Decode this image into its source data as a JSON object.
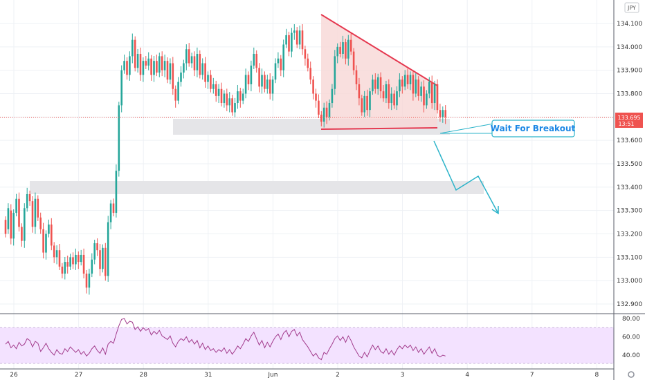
{
  "currency_badge": "JPY",
  "price_tag": {
    "price": "133.695",
    "countdown": "13:51"
  },
  "callout": {
    "label": "Wait For Breakout"
  },
  "colors": {
    "up": "#26a69a",
    "down": "#ef5350",
    "pattern_fill": "#f8d7d6",
    "pattern_line": "#e53950",
    "zone": "#e5e5e8",
    "arrow": "#2bb3c9",
    "callout_border": "#2bb3c9",
    "rsi_line": "#a23b8c",
    "rsi_band": "#f3e2ff",
    "price_tag_bg": "#ef5350"
  },
  "chart_data": [
    {
      "type": "candlestick",
      "title": "",
      "y_ticks": [
        "134.100",
        "134.000",
        "133.900",
        "133.800",
        "133.700",
        "133.600",
        "133.500",
        "133.400",
        "133.300",
        "133.200",
        "133.100",
        "133.000",
        "132.900"
      ],
      "ylim": [
        132.87,
        134.13
      ],
      "x_ticks": [
        {
          "label": "26",
          "x": 0
        },
        {
          "label": "27",
          "x": 24
        },
        {
          "label": "28",
          "x": 48
        },
        {
          "label": "31",
          "x": 72
        },
        {
          "label": "Jun",
          "x": 96
        },
        {
          "label": "2",
          "x": 120
        },
        {
          "label": "3",
          "x": 144
        },
        {
          "label": "4",
          "x": 168
        },
        {
          "label": "7",
          "x": 192
        },
        {
          "label": "8",
          "x": 216
        }
      ],
      "xlim": [
        -4.5,
        241.5
      ],
      "last_price": 133.695,
      "candles": [
        [
          0,
          133.26,
          133.2
        ],
        [
          1,
          133.22,
          133.31
        ],
        [
          2,
          133.3,
          133.18
        ],
        [
          3,
          133.18,
          133.29
        ],
        [
          4,
          133.29,
          133.35
        ],
        [
          5,
          133.35,
          133.23
        ],
        [
          6,
          133.23,
          133.17
        ],
        [
          7,
          133.17,
          133.31
        ],
        [
          8,
          133.31,
          133.37
        ],
        [
          9,
          133.37,
          133.34
        ],
        [
          10,
          133.34,
          133.23
        ],
        [
          11,
          133.23,
          133.35
        ],
        [
          12,
          133.35,
          133.27
        ],
        [
          13,
          133.27,
          133.22
        ],
        [
          14,
          133.22,
          133.12
        ],
        [
          15,
          133.12,
          133.2
        ],
        [
          16,
          133.2,
          133.24
        ],
        [
          17,
          133.24,
          133.15
        ],
        [
          18,
          133.15,
          133.1
        ],
        [
          19,
          133.1,
          133.13
        ],
        [
          20,
          133.13,
          133.06
        ],
        [
          21,
          133.06,
          133.03
        ],
        [
          22,
          133.03,
          133.08
        ],
        [
          23,
          133.08,
          133.06
        ],
        [
          24,
          133.06,
          133.1
        ],
        [
          25,
          133.1,
          133.07
        ],
        [
          26,
          133.07,
          133.11
        ],
        [
          27,
          133.11,
          133.08
        ],
        [
          28,
          133.08,
          133.11
        ],
        [
          29,
          133.11,
          133.03
        ],
        [
          30,
          133.03,
          132.97
        ],
        [
          31,
          132.97,
          133.03
        ],
        [
          32,
          133.03,
          133.09
        ],
        [
          33,
          133.09,
          133.16
        ],
        [
          34,
          133.16,
          133.13
        ],
        [
          35,
          133.13,
          133.05
        ],
        [
          36,
          133.05,
          133.14
        ],
        [
          37,
          133.14,
          133.02
        ],
        [
          38,
          133.02,
          133.25
        ],
        [
          39,
          133.25,
          133.33
        ],
        [
          40,
          133.33,
          133.29
        ],
        [
          41,
          133.29,
          133.47
        ],
        [
          42,
          133.47,
          133.75
        ],
        [
          43,
          133.75,
          133.9
        ],
        [
          44,
          133.9,
          133.94
        ],
        [
          45,
          133.94,
          133.88
        ],
        [
          46,
          133.88,
          133.96
        ],
        [
          47,
          133.96,
          134.03
        ],
        [
          48,
          134.03,
          133.91
        ],
        [
          49,
          133.91,
          133.97
        ],
        [
          50,
          133.97,
          133.88
        ],
        [
          51,
          133.88,
          133.94
        ],
        [
          52,
          133.94,
          133.92
        ],
        [
          53,
          133.92,
          133.95
        ],
        [
          54,
          133.95,
          133.88
        ],
        [
          55,
          133.88,
          133.94
        ],
        [
          56,
          133.94,
          133.89
        ],
        [
          57,
          133.89,
          133.96
        ],
        [
          58,
          133.96,
          133.9
        ],
        [
          59,
          133.9,
          133.94
        ],
        [
          60,
          133.94,
          133.86
        ],
        [
          61,
          133.86,
          133.93
        ],
        [
          62,
          133.93,
          133.82
        ],
        [
          63,
          133.82,
          133.77
        ],
        [
          64,
          133.77,
          133.85
        ],
        [
          65,
          133.85,
          133.89
        ],
        [
          66,
          133.89,
          133.93
        ],
        [
          67,
          133.93,
          133.99
        ],
        [
          68,
          133.99,
          133.93
        ],
        [
          69,
          133.93,
          133.96
        ],
        [
          70,
          133.96,
          133.9
        ],
        [
          71,
          133.9,
          133.97
        ],
        [
          72,
          133.97,
          133.88
        ],
        [
          73,
          133.88,
          133.93
        ],
        [
          74,
          133.93,
          133.85
        ],
        [
          75,
          133.85,
          133.88
        ],
        [
          76,
          133.88,
          133.82
        ],
        [
          77,
          133.82,
          133.84
        ],
        [
          78,
          133.84,
          133.79
        ],
        [
          79,
          133.79,
          133.82
        ],
        [
          80,
          133.82,
          133.76
        ],
        [
          81,
          133.76,
          133.8
        ],
        [
          82,
          133.8,
          133.75
        ],
        [
          83,
          133.75,
          133.78
        ],
        [
          84,
          133.78,
          133.72
        ],
        [
          85,
          133.72,
          133.76
        ],
        [
          86,
          133.76,
          133.81
        ],
        [
          87,
          133.81,
          133.77
        ],
        [
          88,
          133.77,
          133.8
        ],
        [
          89,
          133.8,
          133.88
        ],
        [
          90,
          133.88,
          133.84
        ],
        [
          91,
          133.84,
          133.92
        ],
        [
          92,
          133.92,
          133.97
        ],
        [
          93,
          133.97,
          133.91
        ],
        [
          94,
          133.91,
          133.83
        ],
        [
          95,
          133.83,
          133.88
        ],
        [
          96,
          133.88,
          133.82
        ],
        [
          97,
          133.82,
          133.86
        ],
        [
          98,
          133.86,
          133.8
        ],
        [
          99,
          133.8,
          133.86
        ],
        [
          100,
          133.86,
          133.93
        ],
        [
          101,
          133.93,
          133.95
        ],
        [
          102,
          133.95,
          133.9
        ],
        [
          103,
          133.9,
          134.01
        ],
        [
          104,
          134.01,
          134.05
        ],
        [
          105,
          134.05,
          133.98
        ],
        [
          106,
          133.98,
          134.06
        ],
        [
          107,
          134.06,
          134.07
        ],
        [
          108,
          134.07,
          134.01
        ],
        [
          109,
          134.01,
          134.07
        ],
        [
          110,
          134.07,
          133.99
        ],
        [
          111,
          133.99,
          133.95
        ],
        [
          112,
          133.95,
          133.91
        ],
        [
          113,
          133.91,
          133.86
        ],
        [
          114,
          133.86,
          133.8
        ],
        [
          115,
          133.8,
          133.77
        ],
        [
          116,
          133.77,
          133.71
        ],
        [
          117,
          133.71,
          133.68
        ],
        [
          118,
          133.68,
          133.74
        ],
        [
          119,
          133.74,
          133.7
        ],
        [
          120,
          133.7,
          133.76
        ],
        [
          121,
          133.76,
          133.82
        ],
        [
          122,
          133.82,
          133.96
        ],
        [
          123,
          133.96,
          134.0
        ],
        [
          124,
          134.0,
          133.97
        ],
        [
          125,
          133.97,
          134.02
        ],
        [
          126,
          134.02,
          133.95
        ],
        [
          127,
          133.95,
          134.03
        ],
        [
          128,
          134.03,
          133.98
        ],
        [
          129,
          133.98,
          133.9
        ],
        [
          130,
          133.9,
          133.84
        ],
        [
          131,
          133.84,
          133.78
        ],
        [
          132,
          133.78,
          133.72
        ],
        [
          133,
          133.72,
          133.79
        ],
        [
          134,
          133.79,
          133.73
        ],
        [
          135,
          133.73,
          133.81
        ],
        [
          136,
          133.81,
          133.86
        ],
        [
          137,
          133.86,
          133.82
        ],
        [
          138,
          133.82,
          133.87
        ],
        [
          139,
          133.87,
          133.81
        ],
        [
          140,
          133.81,
          133.78
        ],
        [
          141,
          133.78,
          133.84
        ],
        [
          142,
          133.84,
          133.76
        ],
        [
          143,
          133.76,
          133.8
        ],
        [
          144,
          133.8,
          133.75
        ],
        [
          145,
          133.75,
          133.81
        ],
        [
          146,
          133.81,
          133.86
        ],
        [
          147,
          133.86,
          133.83
        ],
        [
          148,
          133.83,
          133.88
        ],
        [
          149,
          133.88,
          133.84
        ],
        [
          150,
          133.84,
          133.88
        ],
        [
          151,
          133.88,
          133.8
        ],
        [
          152,
          133.8,
          133.86
        ],
        [
          153,
          133.86,
          133.79
        ],
        [
          154,
          133.79,
          133.83
        ],
        [
          155,
          133.83,
          133.75
        ],
        [
          156,
          133.75,
          133.8
        ],
        [
          157,
          133.8,
          133.85
        ],
        [
          158,
          133.85,
          133.76
        ],
        [
          159,
          133.76,
          133.84
        ],
        [
          160,
          133.84,
          133.73
        ],
        [
          161,
          133.73,
          133.7
        ],
        [
          162,
          133.7,
          133.73
        ],
        [
          163,
          133.73,
          133.7
        ]
      ]
    },
    {
      "type": "line",
      "title": "",
      "y_ticks": [
        "80.00",
        "60.00",
        "40.00"
      ],
      "ylim": [
        31,
        83
      ],
      "bands": [
        30,
        70
      ],
      "series": [
        {
          "values": [
            52,
            55,
            48,
            51,
            47,
            54,
            50,
            52,
            58,
            56,
            49,
            55,
            53,
            44,
            48,
            53,
            47,
            43,
            40,
            46,
            42,
            41,
            47,
            44,
            49,
            46,
            43,
            46,
            41,
            44,
            39,
            42,
            47,
            50,
            45,
            42,
            48,
            41,
            52,
            55,
            53,
            63,
            72,
            79,
            80,
            74,
            77,
            76,
            68,
            71,
            66,
            70,
            67,
            69,
            62,
            66,
            63,
            67,
            61,
            59,
            57,
            61,
            53,
            49,
            55,
            58,
            56,
            60,
            54,
            57,
            52,
            56,
            48,
            53,
            46,
            50,
            45,
            47,
            43,
            46,
            44,
            48,
            42,
            46,
            41,
            45,
            50,
            47,
            52,
            58,
            55,
            61,
            65,
            58,
            51,
            56,
            48,
            54,
            49,
            55,
            60,
            63,
            57,
            64,
            67,
            60,
            66,
            68,
            61,
            65,
            57,
            53,
            49,
            44,
            39,
            42,
            37,
            35,
            43,
            41,
            47,
            52,
            58,
            61,
            56,
            60,
            54,
            61,
            56,
            49,
            44,
            39,
            37,
            43,
            38,
            45,
            51,
            46,
            50,
            44,
            42,
            47,
            41,
            45,
            40,
            46,
            50,
            47,
            51,
            48,
            51,
            45,
            49,
            43,
            47,
            41,
            45,
            49,
            42,
            47,
            40,
            38,
            40,
            39
          ]
        }
      ]
    }
  ]
}
